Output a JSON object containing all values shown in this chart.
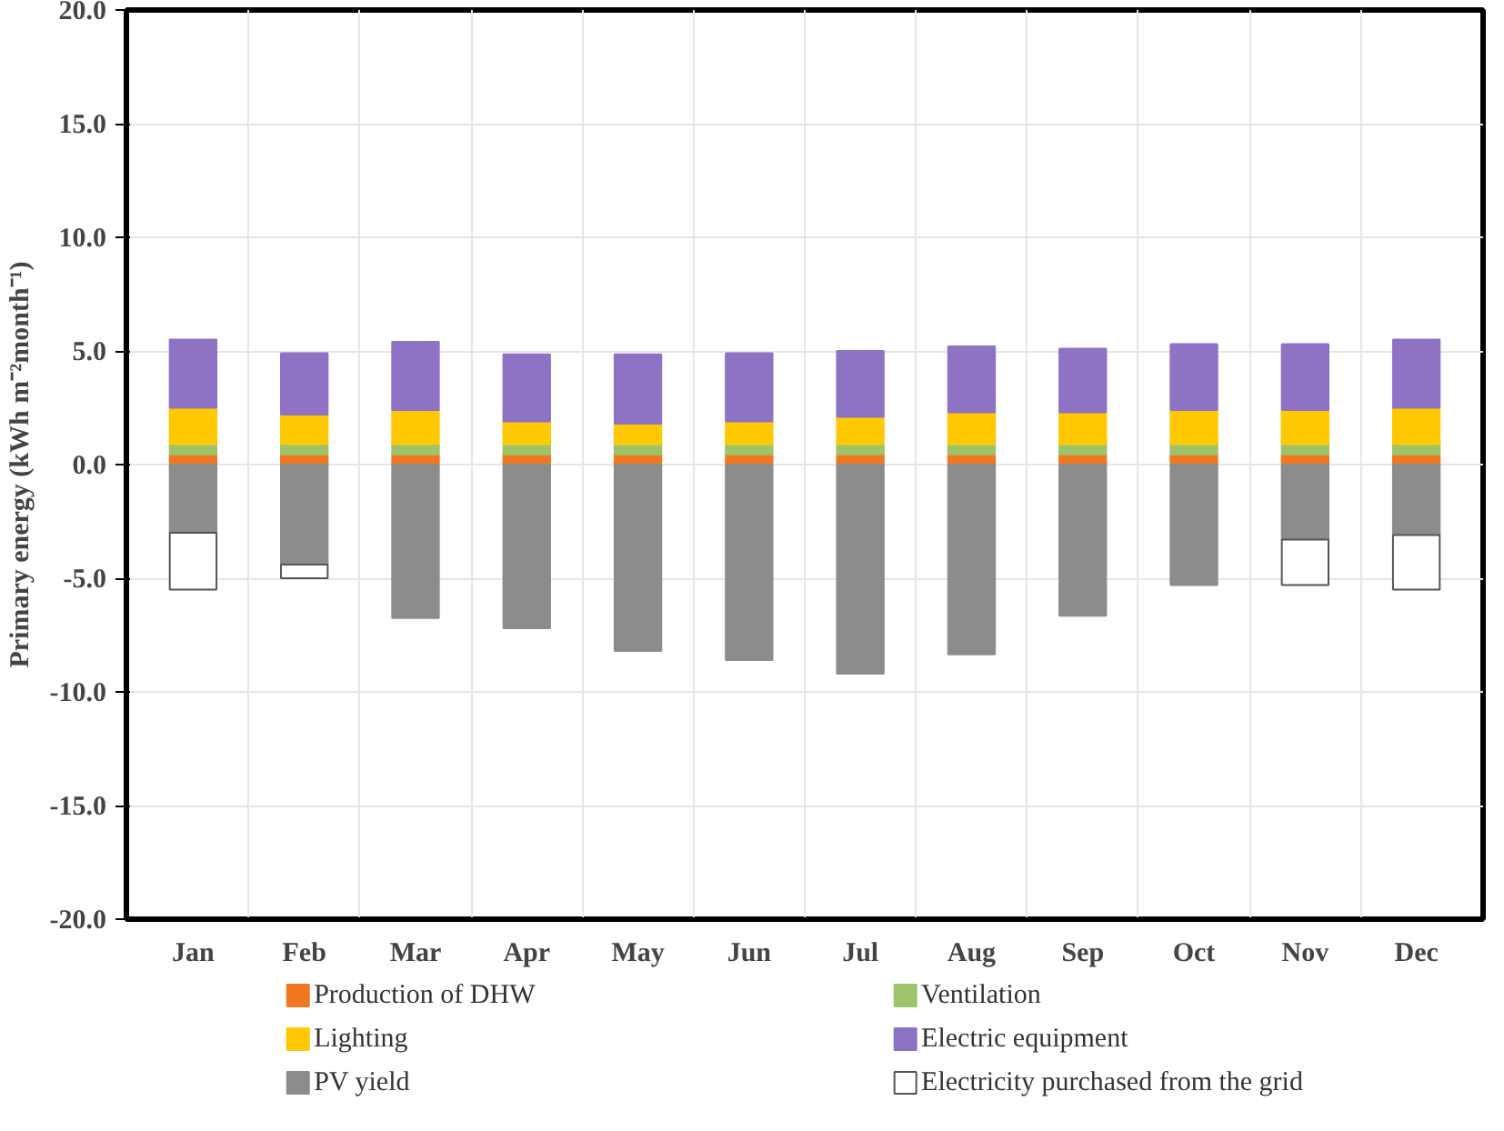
{
  "chart_data": {
    "type": "bar",
    "stacked": true,
    "ylabel": "Primary energy (kWh m⁻²month⁻¹)",
    "categories": [
      "Jan",
      "Feb",
      "Mar",
      "Apr",
      "May",
      "Jun",
      "Jul",
      "Aug",
      "Sep",
      "Oct",
      "Nov",
      "Dec"
    ],
    "series": [
      {
        "name": "Production of DHW",
        "color": "#f07820",
        "values": [
          0.45,
          0.45,
          0.45,
          0.45,
          0.45,
          0.45,
          0.45,
          0.45,
          0.45,
          0.45,
          0.45,
          0.45
        ]
      },
      {
        "name": "Ventilation",
        "color": "#9dc36b",
        "values": [
          0.45,
          0.45,
          0.45,
          0.45,
          0.45,
          0.45,
          0.45,
          0.45,
          0.45,
          0.45,
          0.45,
          0.45
        ]
      },
      {
        "name": "Lighting",
        "color": "#ffc800",
        "values": [
          1.6,
          1.3,
          1.5,
          1.0,
          0.9,
          1.0,
          1.2,
          1.4,
          1.4,
          1.5,
          1.5,
          1.6
        ]
      },
      {
        "name": "Electric equipment",
        "color": "#8e72c4",
        "values": [
          3.0,
          2.7,
          3.0,
          2.95,
          3.05,
          3.0,
          2.9,
          2.9,
          2.8,
          2.9,
          2.9,
          3.0
        ]
      },
      {
        "name": "PV yield",
        "color": "#8c8c8c",
        "values": [
          -3.0,
          -4.4,
          -6.75,
          -7.2,
          -8.2,
          -8.6,
          -9.2,
          -8.35,
          -6.65,
          -5.3,
          -3.3,
          -3.1
        ]
      },
      {
        "name": "Electricity purchased from the grid",
        "color": "#ffffff",
        "values": [
          -2.5,
          -0.6,
          null,
          null,
          null,
          null,
          null,
          null,
          null,
          null,
          -2.0,
          -2.4
        ]
      }
    ],
    "ylim": [
      -20,
      20
    ],
    "yticks": [
      {
        "value": -20,
        "label": "-20.0"
      },
      {
        "value": -15,
        "label": "-15.0"
      },
      {
        "value": -10,
        "label": "-10.0"
      },
      {
        "value": -5,
        "label": "-5.0"
      },
      {
        "value": 0,
        "label": "0.0"
      },
      {
        "value": 5,
        "label": "5.0"
      },
      {
        "value": 10,
        "label": "10.0"
      },
      {
        "value": 15,
        "label": "15.0"
      },
      {
        "value": 20,
        "label": "20.0"
      }
    ],
    "grid": true,
    "legend": "bottom"
  }
}
